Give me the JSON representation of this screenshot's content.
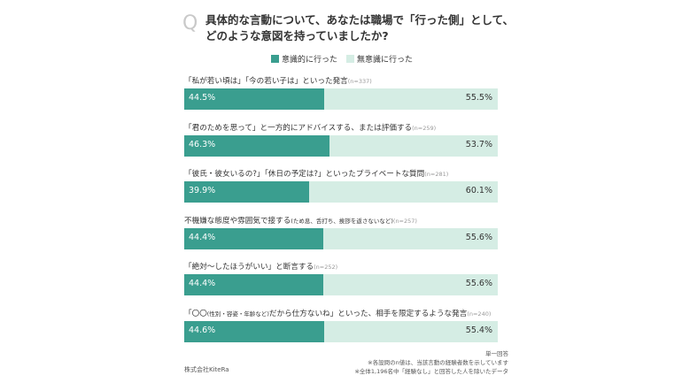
{
  "title_mark": "Q",
  "title_line1": "具体的な言動について、あなたは職場で「行った側」として、",
  "title_line2": "どのような意図を持っていましたか?",
  "colors": {
    "intentional": "#3a9e8f",
    "unintentional": "#d5ede4"
  },
  "chart_data": {
    "type": "bar",
    "orientation": "horizontal-stacked-100",
    "legend_position": "top-center",
    "series_names": [
      "意識的に行った",
      "無意識に行った"
    ],
    "rows": [
      {
        "label": "「私が若い頃は」「今の若い子は」といった発言",
        "label_small": "",
        "n": "(n=337)",
        "intentional": 44.5,
        "unintentional": 55.5,
        "intentional_text": "44.5%",
        "unintentional_text": "55.5%"
      },
      {
        "label": "「君のためを思って」と一方的にアドバイスする、または評価する",
        "label_small": "",
        "n": "(n=259)",
        "intentional": 46.3,
        "unintentional": 53.7,
        "intentional_text": "46.3%",
        "unintentional_text": "53.7%"
      },
      {
        "label": "「彼氏・彼女いるの?」「休日の予定は?」といったプライベートな質問",
        "label_small": "",
        "n": "(n=281)",
        "intentional": 39.9,
        "unintentional": 60.1,
        "intentional_text": "39.9%",
        "unintentional_text": "60.1%"
      },
      {
        "label": "不機嫌な態度や雰囲気で接する",
        "label_small": "(ため息、舌打ち、挨拶を返さないなど)",
        "n": "(n=257)",
        "intentional": 44.4,
        "unintentional": 55.6,
        "intentional_text": "44.4%",
        "unintentional_text": "55.6%"
      },
      {
        "label": "「絶対〜したほうがいい」と断言する",
        "label_small": "",
        "n": "(n=252)",
        "intentional": 44.4,
        "unintentional": 55.6,
        "intentional_text": "44.4%",
        "unintentional_text": "55.6%"
      },
      {
        "label": "「〇〇",
        "label_small": "(性別・容姿・年齢など)",
        "label_tail": "だから仕方ないね」といった、相手を限定するような発言",
        "n": "(n=240)",
        "intentional": 44.6,
        "unintentional": 55.4,
        "intentional_text": "44.6%",
        "unintentional_text": "55.4%"
      }
    ]
  },
  "notes": [
    "単一回答",
    "※各設問のn値は、当該言動の経験者数を示しています",
    "※全体1,196名中「経験なし」と回答した人を除いたデータ"
  ],
  "credit": "株式会社KiteRa"
}
